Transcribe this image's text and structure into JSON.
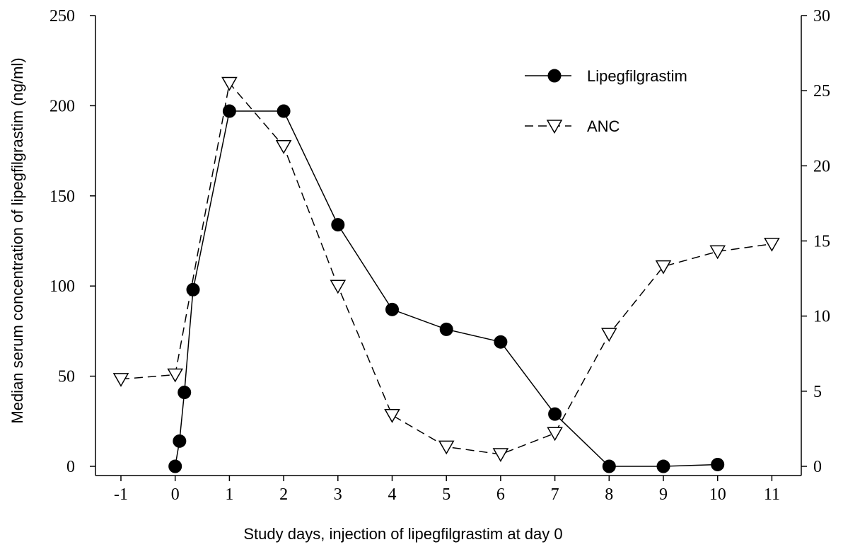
{
  "chart_data": {
    "type": "line",
    "xlabel": "Study days, injection of lipegfilgrastim at day 0",
    "ylabel": "Median serum concentration of lipegfilgrastim (ng/ml)",
    "ylabel_right": "",
    "xlim": [
      -1,
      11
    ],
    "ylim": [
      0,
      250
    ],
    "ylim_right": [
      0,
      30
    ],
    "x_ticks": [
      -1,
      0,
      1,
      2,
      3,
      4,
      5,
      6,
      7,
      8,
      9,
      10,
      11
    ],
    "y_ticks": [
      0,
      50,
      100,
      150,
      200,
      250
    ],
    "y_ticks_right": [
      0,
      5,
      10,
      15,
      20,
      25,
      30
    ],
    "legend_position": "top-right",
    "series": [
      {
        "name": "Lipegfilgrastim",
        "axis": "left",
        "marker": "filled-circle",
        "line": "solid",
        "x": [
          0,
          0.08,
          0.17,
          0.33,
          1,
          2,
          3,
          4,
          5,
          6,
          7,
          8,
          9,
          10
        ],
        "y": [
          0,
          14,
          41,
          98,
          197,
          197,
          134,
          87,
          76,
          69,
          29,
          0,
          0,
          1
        ]
      },
      {
        "name": "ANC",
        "axis": "right",
        "marker": "open-triangle-down",
        "line": "dashed",
        "x": [
          -1,
          0,
          1,
          2,
          3,
          4,
          5,
          6,
          7,
          8,
          9,
          10,
          11
        ],
        "y": [
          5.8,
          6.1,
          25.5,
          21.3,
          12.0,
          3.4,
          1.3,
          0.8,
          2.2,
          8.8,
          13.3,
          14.3,
          14.8
        ]
      }
    ],
    "colors": {
      "line": "#000000",
      "marker_fill_open": "#ffffff"
    }
  }
}
